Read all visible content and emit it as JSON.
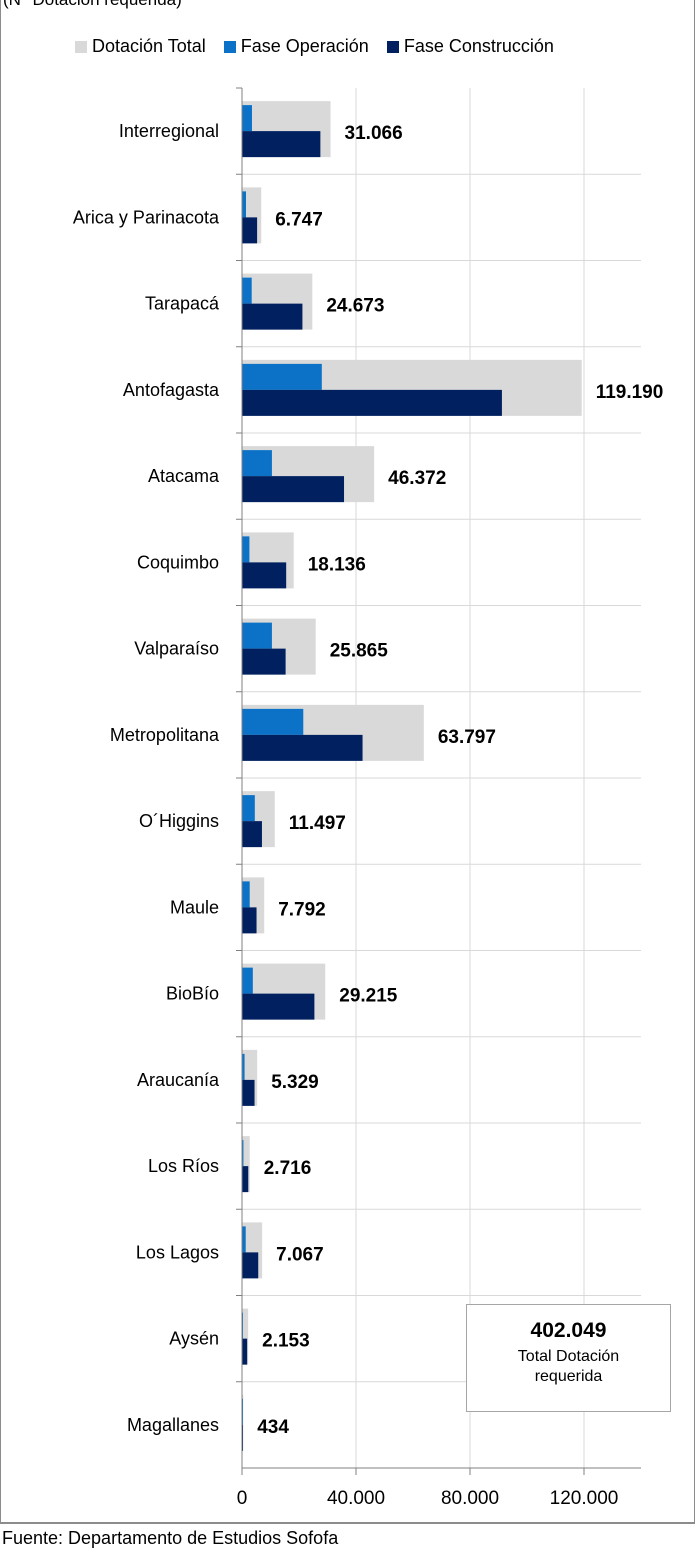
{
  "subtitle": "(N° Dotación requerida)",
  "source": "Fuente: Departamento de Estudios Sofofa",
  "total_box": {
    "value": "402.049",
    "label": "Total Dotación requerida"
  },
  "colors": {
    "total": "#d9d9d9",
    "operation": "#0b72c7",
    "construction": "#002060",
    "grid": "#d9d9d9",
    "axis": "#808080"
  },
  "chart_data": {
    "type": "bar",
    "orientation": "horizontal",
    "categories": [
      "Interregional",
      "Arica y Parinacota",
      "Tarapacá",
      "Antofagasta",
      "Atacama",
      "Coquimbo",
      "Valparaíso",
      "Metropolitana",
      "O´Higgins",
      "Maule",
      "BioBío",
      "Araucanía",
      "Los Ríos",
      "Los Lagos",
      "Aysén",
      "Magallanes"
    ],
    "series": [
      {
        "name": "Dotación Total",
        "values": [
          31066,
          6747,
          24673,
          119190,
          46372,
          18136,
          25865,
          63797,
          11497,
          7792,
          29215,
          5329,
          2716,
          7067,
          2153,
          434
        ]
      },
      {
        "name": "Fase Operación",
        "values": [
          3500,
          1400,
          3400,
          28000,
          10500,
          2600,
          10500,
          21500,
          4500,
          2700,
          3800,
          900,
          500,
          1300,
          350,
          100
        ]
      },
      {
        "name": "Fase Construcción",
        "values": [
          27500,
          5300,
          21200,
          91200,
          35800,
          15500,
          15300,
          42300,
          7000,
          5100,
          25400,
          4400,
          2200,
          5700,
          1800,
          330
        ]
      }
    ],
    "value_labels": [
      "31.066",
      "6.747",
      "24.673",
      "119.190",
      "46.372",
      "18.136",
      "25.865",
      "63.797",
      "11.497",
      "7.792",
      "29.215",
      "5.329",
      "2.716",
      "7.067",
      "2.153",
      "434"
    ],
    "x_ticks": [
      0,
      40000,
      80000,
      120000
    ],
    "x_tick_labels": [
      "0",
      "40.000",
      "80.000",
      "120.000"
    ],
    "xlim": [
      0,
      140000
    ],
    "grid": true,
    "legend_position": "top"
  }
}
